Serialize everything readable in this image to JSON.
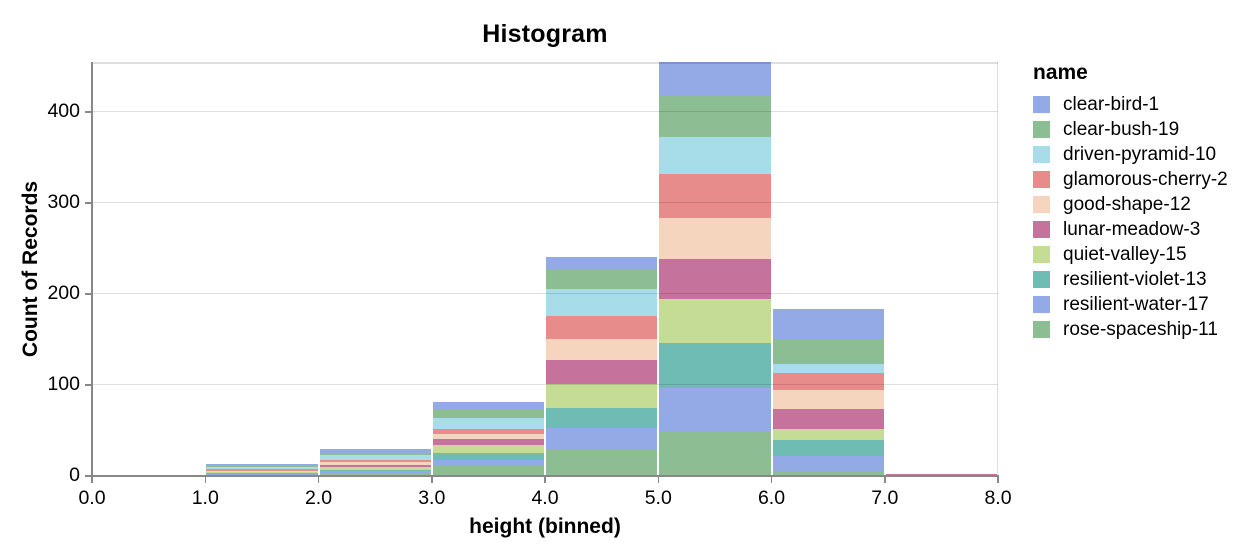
{
  "chart_data": {
    "type": "bar",
    "subtype": "stacked-histogram",
    "title": "Histogram",
    "xlabel": "height (binned)",
    "ylabel": "Count of Records",
    "legend_title": "name",
    "legend_position": "right",
    "grid": true,
    "stack_order": "alphabetical-top-to-bottom",
    "x_bin_edges": [
      0,
      1,
      2,
      3,
      4,
      5,
      6,
      7,
      8
    ],
    "x_tick_labels": [
      "0.0",
      "1.0",
      "2.0",
      "3.0",
      "4.0",
      "5.0",
      "6.0",
      "7.0",
      "8.0"
    ],
    "y_ticks": [
      0,
      100,
      200,
      300,
      400
    ],
    "ylim": [
      0,
      455
    ],
    "bin_totals": [
      1,
      13,
      30,
      81,
      241,
      455,
      184,
      2
    ],
    "series": [
      {
        "name": "clear-bird-1",
        "color": "#93aae6",
        "values": [
          0,
          1,
          5,
          8,
          15,
          37,
          33,
          0
        ]
      },
      {
        "name": "clear-bush-19",
        "color": "#8dbd93",
        "values": [
          0,
          2,
          2,
          9,
          21,
          45,
          28,
          0
        ]
      },
      {
        "name": "driven-pyramid-10",
        "color": "#a6dde9",
        "values": [
          0,
          2,
          5,
          12,
          29,
          41,
          10,
          0
        ]
      },
      {
        "name": "glamorous-cherry-2",
        "color": "#e88b8b",
        "values": [
          0,
          2,
          3,
          6,
          25,
          48,
          18,
          0
        ]
      },
      {
        "name": "good-shape-12",
        "color": "#f5d5bd",
        "values": [
          0,
          1,
          3,
          5,
          24,
          46,
          21,
          0
        ]
      },
      {
        "name": "lunar-meadow-3",
        "color": "#c5729d",
        "values": [
          0,
          1,
          2,
          7,
          26,
          43,
          22,
          1
        ]
      },
      {
        "name": "quiet-valley-15",
        "color": "#c5dc95",
        "values": [
          1,
          1,
          3,
          9,
          26,
          49,
          12,
          0
        ]
      },
      {
        "name": "resilient-violet-13",
        "color": "#6fbcb4",
        "values": [
          0,
          1,
          2,
          7,
          22,
          49,
          18,
          0
        ]
      },
      {
        "name": "resilient-water-17",
        "color": "#93aae6",
        "values": [
          0,
          1,
          2,
          6,
          24,
          49,
          16,
          1
        ]
      },
      {
        "name": "rose-spaceship-11",
        "color": "#8dbd93",
        "values": [
          0,
          1,
          3,
          12,
          29,
          48,
          6,
          0
        ]
      }
    ],
    "colors": {
      "axis_line": "#888888",
      "gridline": "#dddddd",
      "label": "#000000",
      "background": "#ffffff"
    }
  }
}
